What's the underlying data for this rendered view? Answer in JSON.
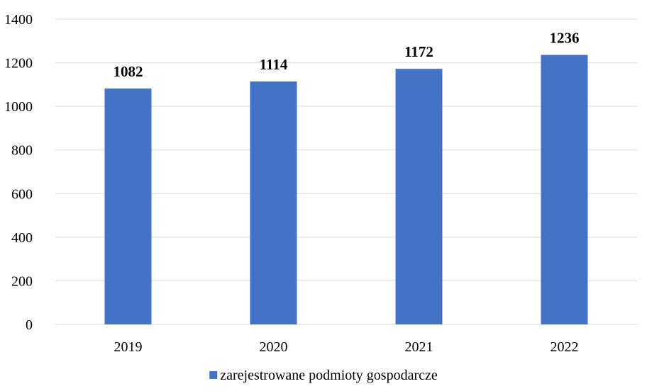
{
  "chart_data": {
    "type": "bar",
    "title": "",
    "xlabel": "",
    "ylabel": "",
    "categories": [
      "2019",
      "2020",
      "2021",
      "2022"
    ],
    "series": [
      {
        "name": "zarejestrowane podmioty gospodarcze",
        "values": [
          1082,
          1114,
          1172,
          1236
        ],
        "color": "#4472c4"
      }
    ],
    "ylim": [
      0,
      1400
    ],
    "yticks": [
      0,
      200,
      400,
      600,
      800,
      1000,
      1200,
      1400
    ],
    "grid": true,
    "data_labels": true,
    "legend_position": "bottom"
  }
}
